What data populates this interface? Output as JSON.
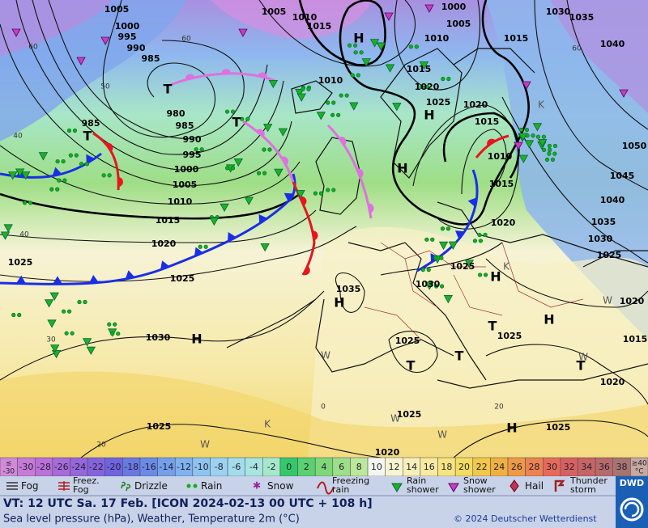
{
  "map": {
    "pressure_labels": [
      "1005",
      "1000",
      "995",
      "990",
      "985",
      "980",
      "985",
      "990",
      "995",
      "1000",
      "1005",
      "1010",
      "1015",
      "1020",
      "1025",
      "1030",
      "1025",
      "1020",
      "1025",
      "985",
      "1005",
      "1010",
      "1015",
      "1010",
      "1015",
      "1020",
      "1025",
      "1020",
      "1015",
      "1010",
      "1015",
      "1020",
      "1025",
      "1030",
      "1035",
      "1025",
      "1025",
      "1025",
      "1025",
      "1000",
      "1005",
      "1010",
      "1015",
      "1030",
      "1035",
      "1040",
      "1050",
      "1045",
      "1040",
      "1035",
      "1030",
      "1025",
      "1020",
      "1015",
      "1020"
    ],
    "pressure_centers": [
      "H",
      "H",
      "H",
      "H",
      "H",
      "H",
      "H",
      "H",
      "T",
      "T",
      "T",
      "T",
      "T",
      "T",
      "T"
    ],
    "temperature_labels": [
      "60",
      "60",
      "60",
      "50",
      "40",
      "40",
      "30",
      "20",
      "20",
      "0"
    ],
    "air_mass_markers": [
      "K",
      "K",
      "W",
      "W",
      "W",
      "W",
      "W",
      "W",
      "K"
    ]
  },
  "legend": {
    "temperature_scale": [
      {
        "label": "≤",
        "sub": "-30",
        "color": "#d08ad8"
      },
      {
        "label": "-30",
        "color": "#c77ad6"
      },
      {
        "label": "-28",
        "color": "#bb70d8"
      },
      {
        "label": "-26",
        "color": "#a86ad8"
      },
      {
        "label": "-24",
        "color": "#9666da"
      },
      {
        "label": "-22",
        "color": "#8464dc"
      },
      {
        "label": "-20",
        "color": "#6e64de"
      },
      {
        "label": "-18",
        "color": "#6a78e2"
      },
      {
        "label": "-16",
        "color": "#6a8ae6"
      },
      {
        "label": "-14",
        "color": "#74a0ea"
      },
      {
        "label": "-12",
        "color": "#80b2ee"
      },
      {
        "label": "-10",
        "color": "#8ec4f0"
      },
      {
        "label": "-8",
        "color": "#9cd2f0"
      },
      {
        "label": "-6",
        "color": "#a4dcec"
      },
      {
        "label": "-4",
        "color": "#a8e4e0"
      },
      {
        "label": "-2",
        "color": "#a6e8cc"
      },
      {
        "label": "0",
        "color": "#34c86a"
      },
      {
        "label": "2",
        "color": "#5ad070"
      },
      {
        "label": "4",
        "color": "#7ed878"
      },
      {
        "label": "6",
        "color": "#9cdf88"
      },
      {
        "label": "8",
        "color": "#bce89c"
      },
      {
        "label": "10",
        "color": "#f6f6f0"
      },
      {
        "label": "12",
        "color": "#f8f4d0"
      },
      {
        "label": "14",
        "color": "#f8efb8"
      },
      {
        "label": "16",
        "color": "#f8ea9e"
      },
      {
        "label": "18",
        "color": "#f6e480"
      },
      {
        "label": "20",
        "color": "#f4dc60"
      },
      {
        "label": "22",
        "color": "#f2c848"
      },
      {
        "label": "24",
        "color": "#f0b040"
      },
      {
        "label": "26",
        "color": "#ee9a44"
      },
      {
        "label": "28",
        "color": "#ec8250"
      },
      {
        "label": "30",
        "color": "#e66a5a"
      },
      {
        "label": "32",
        "color": "#d86060"
      },
      {
        "label": "34",
        "color": "#c86464"
      },
      {
        "label": "36",
        "color": "#b86a6a"
      },
      {
        "label": "38",
        "color": "#a87470"
      },
      {
        "label": "≥40",
        "sub": "°C",
        "color": "#c8a8a0"
      }
    ],
    "weather": [
      "Fog",
      "Freez.\nFog",
      "Drizzle",
      "Rain",
      "Snow",
      "Freezing\nrain",
      "Rain\nshower",
      "Snow\nshower",
      "Hail",
      "Thunder\nstorm"
    ]
  },
  "footer": {
    "valid_time": "VT: 12 UTC Sa.  17 Feb. [ICON 2024-02-13  00 UTC + 108 h]",
    "description": "Sea level pressure (hPa), Weather, Temperature 2m (°C)",
    "copyright": "© 2024 Deutscher Wetterdienst",
    "logo": "DWD"
  }
}
